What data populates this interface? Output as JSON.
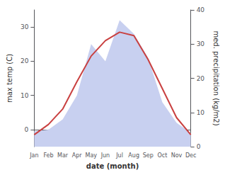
{
  "chart_data": {
    "type": "line",
    "xlabel": "date (month)",
    "ylabel": "max temp (C)",
    "y2label": "med. precipitation (kg/m2)",
    "categories": [
      "Jan",
      "Feb",
      "Mar",
      "Apr",
      "May",
      "Jun",
      "Jul",
      "Aug",
      "Sep",
      "Oct",
      "Nov",
      "Dec"
    ],
    "series": [
      {
        "type": "area",
        "color": "#c8d0f0",
        "axis": "y2",
        "values": [
          4.5,
          5.0,
          8.0,
          15.0,
          30.0,
          25.0,
          37.0,
          33.0,
          26.0,
          13.0,
          7.0,
          4.0
        ]
      },
      {
        "type": "line",
        "color": "#c94040",
        "values": [
          -1.5,
          1.5,
          6.0,
          14.0,
          21.5,
          26.0,
          28.5,
          27.5,
          20.5,
          12.0,
          3.5,
          -1.5
        ]
      }
    ],
    "ylim": [
      -5,
      35
    ],
    "yticks": [
      0,
      10,
      20,
      30
    ],
    "y2lim": [
      0,
      40
    ],
    "y2ticks": [
      0,
      10,
      20,
      30,
      40
    ],
    "grid": false
  }
}
